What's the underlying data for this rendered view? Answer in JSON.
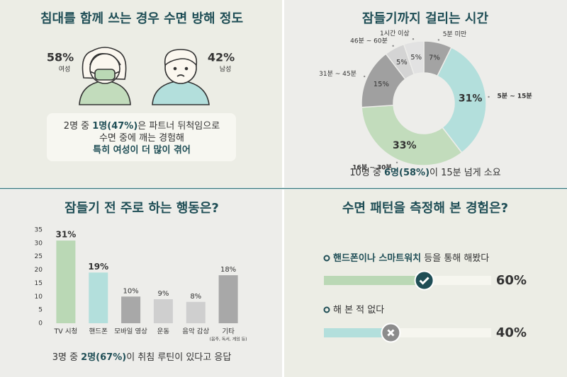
{
  "chart_data": [
    {
      "type": "icon-stat",
      "title": "침대를 함께 쓰는 경우 수면 방해 정도",
      "categories": [
        "여성",
        "남성"
      ],
      "values": [
        58,
        42
      ],
      "value_labels": [
        "58%",
        "42%"
      ],
      "colors": [
        "#c2dcbc",
        "#b3dfdc"
      ],
      "note": [
        [
          {
            "text": "2명 중 "
          },
          {
            "text": "1명(47%)",
            "bold": true
          },
          {
            "text": "은 파트너 뒤척임으로"
          }
        ],
        [
          {
            "text": "수면 중에 깨는 경험해"
          }
        ],
        [
          {
            "text": "특히 여성이 더 많이 겪어",
            "bold": true
          }
        ]
      ]
    },
    {
      "type": "donut",
      "title": "잠들기까지 걸리는 시간",
      "categories": [
        "5분 미만",
        "5분 ~ 15분",
        "16분 ~ 30분",
        "31분 ~ 45분",
        "46분 ~ 60분",
        "1시간 이상"
      ],
      "values": [
        7,
        31,
        33,
        15,
        5,
        5
      ],
      "value_labels": [
        "7%",
        "31%",
        "33%",
        "15%",
        "5%",
        "5%"
      ],
      "colors": [
        "#a3a3a3",
        "#b3dfdc",
        "#c2dcbc",
        "#a0a0a0",
        "#d4d4d4",
        "#e2e2e2"
      ],
      "highlight": [
        false,
        true,
        true,
        false,
        false,
        false
      ],
      "note": [
        [
          {
            "text": "10명 중 "
          },
          {
            "text": "6명(58%)",
            "bold": true
          },
          {
            "text": "이 15분 넘게 소요"
          }
        ]
      ]
    },
    {
      "type": "bar",
      "title": "잠들기 전 주로 하는 행동은?",
      "categories": [
        "TV 시청",
        "핸드폰",
        "모바일 영상",
        "운동",
        "음악 감상",
        "기타"
      ],
      "category_footnote": "(음주, 독서, 게임 등)",
      "values": [
        31,
        19,
        10,
        9,
        8,
        18
      ],
      "value_labels": [
        "31%",
        "19%",
        "10%",
        "9%",
        "8%",
        "18%"
      ],
      "colors": [
        "#bad8b5",
        "#b3dfdc",
        "#a8a8a8",
        "#cfcfcf",
        "#cfcfcf",
        "#a8a8a8"
      ],
      "highlight": [
        true,
        true,
        false,
        false,
        false,
        false
      ],
      "ylim": [
        0,
        35
      ],
      "yticks": [
        0,
        5,
        10,
        15,
        20,
        25,
        30,
        35
      ],
      "note": [
        [
          {
            "text": "3명 중 "
          },
          {
            "text": "2명(67%)",
            "bold": true
          },
          {
            "text": "이 취침 루틴이 있다고 응답"
          }
        ]
      ]
    },
    {
      "type": "progress",
      "title": "수면 패턴을 측정해 본 경험은?",
      "categories": [
        [
          {
            "text": "핸드폰이나 스마트워치",
            "bold": true
          },
          {
            "text": " 등을 통해 해봤다"
          }
        ],
        [
          {
            "text": "해 본 적 없다"
          }
        ]
      ],
      "values": [
        60,
        40
      ],
      "value_labels": [
        "60%",
        "40%"
      ],
      "xlim": [
        0,
        100
      ],
      "colors": [
        "#bad8b5",
        "#b3dfdc"
      ],
      "knob_colors": [
        "#1f4e56",
        "#8c8c8c"
      ]
    }
  ]
}
